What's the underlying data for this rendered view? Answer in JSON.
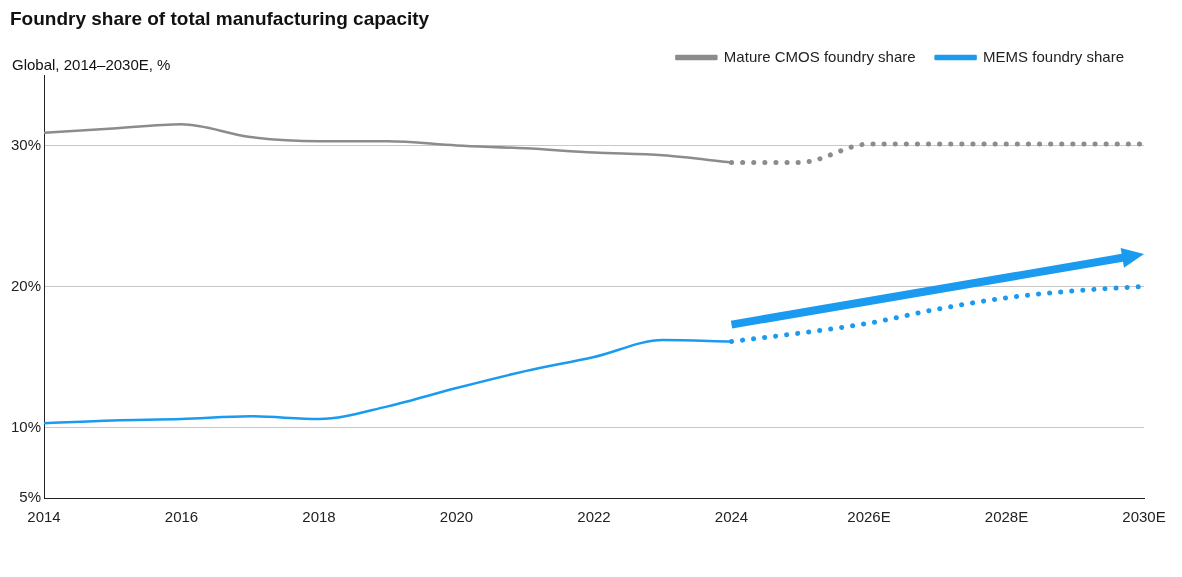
{
  "chart_data": {
    "type": "line",
    "title": "Foundry share of total manufacturing capacity",
    "subtitle": "Global, 2014–2030E, %",
    "xlim": [
      2014,
      2030
    ],
    "xticks": [
      2014,
      2016,
      2018,
      2020,
      2022,
      2024,
      {
        "value": 2026,
        "label": "2026E"
      },
      {
        "value": 2028,
        "label": "2028E"
      },
      {
        "value": 2030,
        "label": "2030E"
      }
    ],
    "ylim": [
      5,
      35
    ],
    "yticks": [
      {
        "value": 5,
        "label": "5%"
      },
      {
        "value": 10,
        "label": "10%"
      },
      {
        "value": 20,
        "label": "20%"
      },
      {
        "value": 30,
        "label": "30%"
      }
    ],
    "grid": "y",
    "legend": "top right",
    "marker": "none",
    "series": [
      {
        "name": "Mature CMOS foundry share",
        "color": "#8c8c8c",
        "line_style": "solid",
        "x": [
          2014,
          2015,
          2016,
          2017,
          2018,
          2019,
          2020,
          2021,
          2022,
          2023,
          2024
        ],
        "values": [
          30.9,
          31.2,
          31.5,
          30.6,
          30.3,
          30.3,
          30.0,
          29.8,
          29.5,
          29.3,
          28.8
        ]
      },
      {
        "color": "#8c8c8c",
        "line_style": "dotted",
        "x": [
          2024,
          2025,
          2026,
          2027,
          2028,
          2029,
          2030
        ],
        "values": [
          28.8,
          28.8,
          30.1,
          30.1,
          30.1,
          30.1,
          30.1
        ]
      },
      {
        "name": "MEMS foundry share",
        "color": "#1a9bf0",
        "line_style": "solid",
        "x": [
          2014,
          2015,
          2016,
          2017,
          2018,
          2019,
          2020,
          2021,
          2022,
          2023,
          2024
        ],
        "values": [
          10.3,
          10.5,
          10.6,
          10.8,
          10.6,
          11.5,
          12.8,
          14.0,
          15.0,
          16.2,
          16.1
        ]
      },
      {
        "color": "#1a9bf0",
        "line_style": "dotted",
        "x": [
          2024,
          2025,
          2026,
          2027,
          2028,
          2029,
          2030
        ],
        "values": [
          16.1,
          16.7,
          17.4,
          18.4,
          19.2,
          19.7,
          20.0
        ]
      }
    ]
  }
}
